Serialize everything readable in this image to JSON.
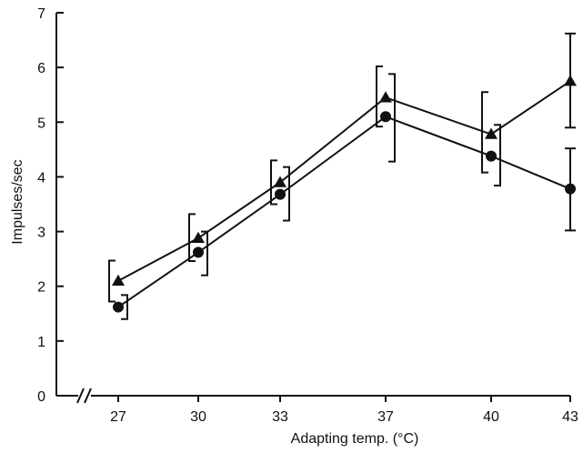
{
  "chart_data": {
    "type": "line",
    "title": "",
    "xlabel": "Adapting temp. (°C)",
    "ylabel": "Impulses/sec",
    "categories": [
      "27",
      "30",
      "33",
      "37",
      "40",
      "43"
    ],
    "ylim": [
      0,
      7
    ],
    "yticks": [
      "0",
      "1",
      "2",
      "3",
      "4",
      "5",
      "6",
      "7"
    ],
    "grid": false,
    "legend": "none",
    "axis_break": "x",
    "series": [
      {
        "marker": "triangle",
        "values": [
          2.1,
          2.88,
          3.9,
          5.45,
          4.78,
          5.75
        ],
        "err_low": [
          1.72,
          2.46,
          3.5,
          4.92,
          4.08,
          4.9
        ],
        "err_high": [
          2.47,
          3.32,
          4.3,
          6.02,
          5.55,
          6.62
        ]
      },
      {
        "marker": "circle",
        "values": [
          1.62,
          2.62,
          3.68,
          5.1,
          4.38,
          3.78
        ],
        "err_low": [
          1.4,
          2.2,
          3.2,
          4.28,
          3.84,
          3.02
        ],
        "err_high": [
          1.84,
          3.0,
          4.18,
          5.88,
          4.95,
          4.52
        ]
      }
    ],
    "colors": {
      "ink": "#111111"
    }
  }
}
